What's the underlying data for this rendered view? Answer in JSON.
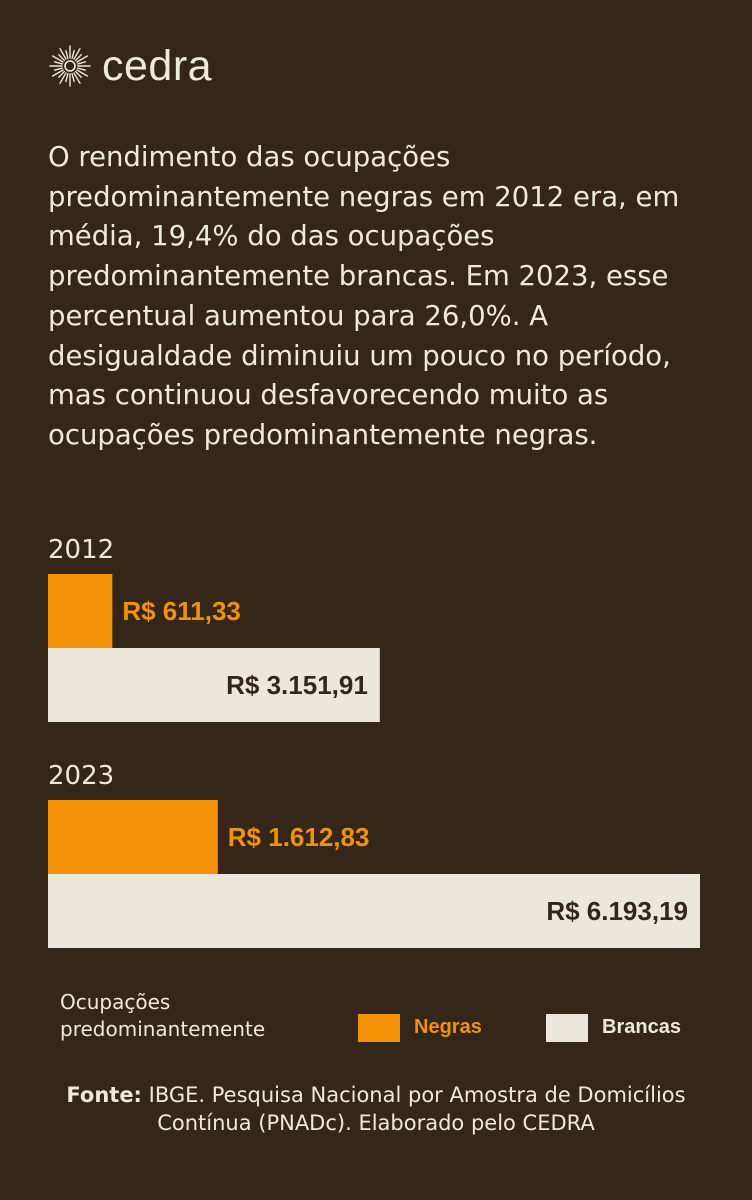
{
  "brand": {
    "name": "cedra",
    "icon": "sun-burst-icon"
  },
  "intro": "O rendimento das ocupações predominantemente negras em 2012 era, em média, 19,4% do das ocupações predominantemente brancas. Em 2023, esse percentual aumentou para 26,0%. A desigualdade diminuiu um pouco no período, mas continuou desfavorecendo muito as ocupações predominantemente negras.",
  "colors": {
    "background": "#35261a",
    "negras": "#f39209",
    "brancas": "#ebe7dc",
    "text_light": "#ede9df",
    "text_dark": "#35261a"
  },
  "chart_data": {
    "type": "bar",
    "orientation": "horizontal",
    "groups": [
      {
        "year": "2012",
        "bars": [
          {
            "series": "Negras",
            "value": 611.33,
            "label": "R$ 611,33"
          },
          {
            "series": "Brancas",
            "value": 3151.91,
            "label": "R$ 3.151,91"
          }
        ]
      },
      {
        "year": "2023",
        "bars": [
          {
            "series": "Negras",
            "value": 1612.83,
            "label": "R$ 1.612,83"
          },
          {
            "series": "Brancas",
            "value": 6193.19,
            "label": "R$ 6.193,19"
          }
        ]
      }
    ],
    "legend": {
      "title": "Ocupações predominantemente",
      "items": [
        {
          "name": "Negras",
          "color": "#f39209"
        },
        {
          "name": "Brancas",
          "color": "#ebe7dc"
        }
      ]
    },
    "xlim": [
      0,
      6193.19
    ]
  },
  "source": {
    "label": "Fonte:",
    "text": " IBGE. Pesquisa Nacional por Amostra de Domicílios Contínua (PNADc). Elaborado pelo CEDRA"
  }
}
